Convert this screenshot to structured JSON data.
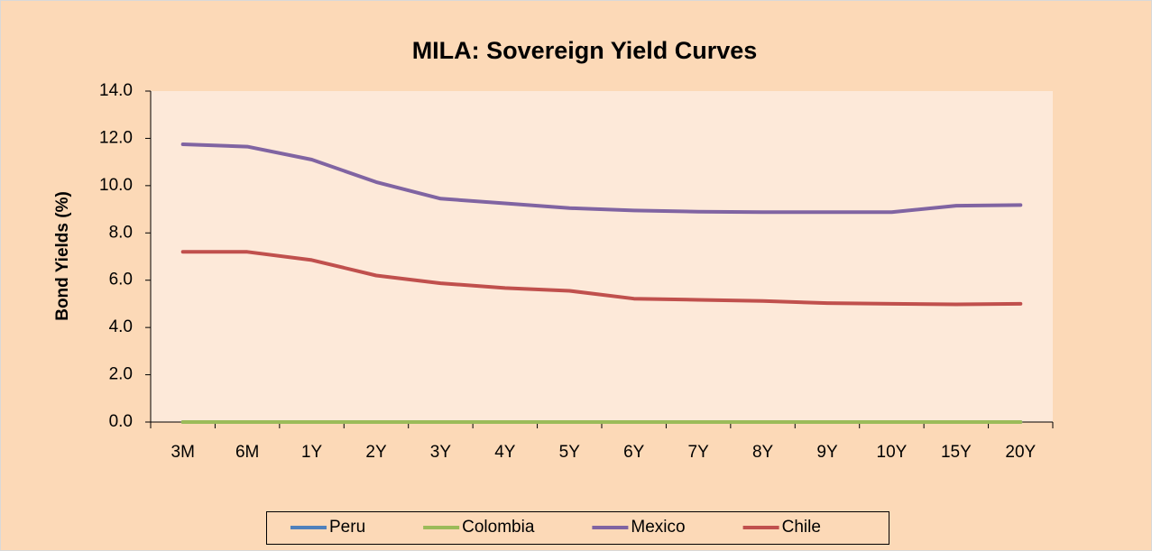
{
  "chart_data": {
    "type": "line",
    "title": "MILA: Sovereign Yield Curves",
    "y_label": "Bond Yields  (%)",
    "categories": [
      "3M",
      "6M",
      "1Y",
      "2Y",
      "3Y",
      "4Y",
      "5Y",
      "6Y",
      "7Y",
      "8Y",
      "9Y",
      "10Y",
      "15Y",
      "20Y"
    ],
    "series": [
      {
        "name": "Peru",
        "color": "#4f81bd",
        "values": [
          0,
          0,
          0,
          0,
          0,
          0,
          0,
          0,
          0,
          0,
          0,
          0,
          0,
          0
        ]
      },
      {
        "name": "Colombia",
        "color": "#9bbb59",
        "values": [
          0,
          0,
          0,
          0,
          0,
          0,
          0,
          0,
          0,
          0,
          0,
          0,
          0,
          0
        ]
      },
      {
        "name": "Mexico",
        "color": "#8064a2",
        "values": [
          11.75,
          11.65,
          11.1,
          10.15,
          9.45,
          9.25,
          9.05,
          8.95,
          8.9,
          8.88,
          8.88,
          8.88,
          9.15,
          9.18
        ]
      },
      {
        "name": "Chile",
        "color": "#c0504d",
        "values": [
          7.2,
          7.2,
          6.85,
          6.2,
          5.87,
          5.67,
          5.55,
          5.22,
          5.17,
          5.12,
          5.03,
          5.0,
          4.98,
          5.0
        ]
      }
    ],
    "ylim": [
      0,
      14
    ],
    "yticks": [
      {
        "value": 0,
        "label": "0.0"
      },
      {
        "value": 2,
        "label": "2.0"
      },
      {
        "value": 4,
        "label": "4.0"
      },
      {
        "value": 6,
        "label": "6.0"
      },
      {
        "value": 8,
        "label": "8.0"
      },
      {
        "value": 10,
        "label": "10.0"
      },
      {
        "value": 12,
        "label": "12.0"
      },
      {
        "value": 14,
        "label": "14.0"
      }
    ],
    "grid": false,
    "legend": "bottom"
  }
}
